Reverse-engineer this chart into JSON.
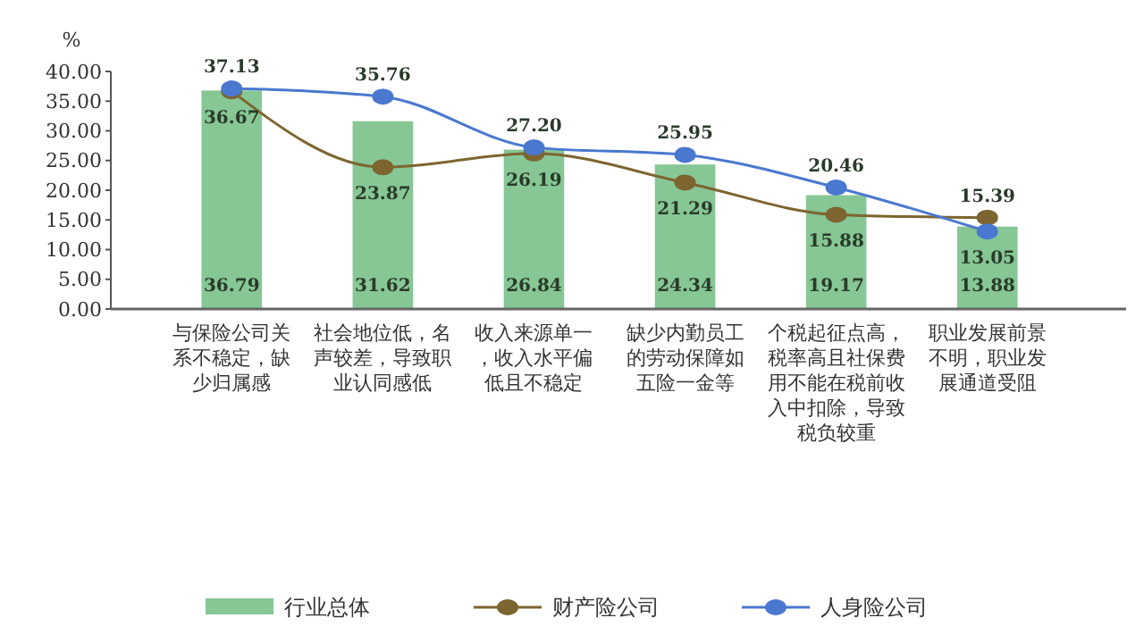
{
  "chart_data": {
    "type": "bar",
    "ylabel": "%",
    "categories": [
      "与保险公司关系不稳定，缺少归属感",
      "社会地位低，名声较差，导致职业认同感低",
      "收入来源单一，收入水平偏低且不稳定",
      "缺少内勤员工的劳动保障如五险一金等",
      "个税起征点高，税率高且社保费用不能在税前收入中扣除，导致税负较重",
      "职业发展前景不明，职业发展通道受阻"
    ],
    "series": [
      {
        "name": "行业总体",
        "color": "#86c795",
        "values": [
          36.79,
          31.62,
          26.84,
          24.34,
          19.17,
          13.88
        ],
        "value_labels": [
          "36.79",
          "31.62",
          "26.84",
          "24.34",
          "19.17",
          "13.88"
        ]
      },
      {
        "name": "财产险公司",
        "type": "line",
        "color": "#7d6530",
        "values": [
          36.67,
          23.87,
          26.19,
          21.29,
          15.88,
          15.39
        ],
        "value_labels": [
          "36.67",
          "23.87",
          "26.19",
          "21.29",
          "15.88",
          "15.39"
        ]
      },
      {
        "name": "人身险公司",
        "type": "line",
        "color": "#4a78d0",
        "values": [
          37.13,
          35.76,
          27.2,
          25.95,
          20.46,
          13.05
        ],
        "value_labels": [
          "37.13",
          "35.76",
          "27.20",
          "25.95",
          "20.46",
          "13.05"
        ]
      }
    ],
    "ylim": [
      0,
      40
    ],
    "yticks": [
      {
        "value": 0,
        "label": "0.00"
      },
      {
        "value": 5,
        "label": "5.00"
      },
      {
        "value": 10,
        "label": "10.00"
      },
      {
        "value": 15,
        "label": "15.00"
      },
      {
        "value": 20,
        "label": "20.00"
      },
      {
        "value": 25,
        "label": "25.00"
      },
      {
        "value": 30,
        "label": "30.00"
      },
      {
        "value": 35,
        "label": "35.00"
      },
      {
        "value": 40,
        "label": "40.00"
      }
    ],
    "marker": "circle",
    "legend": "bottom"
  }
}
